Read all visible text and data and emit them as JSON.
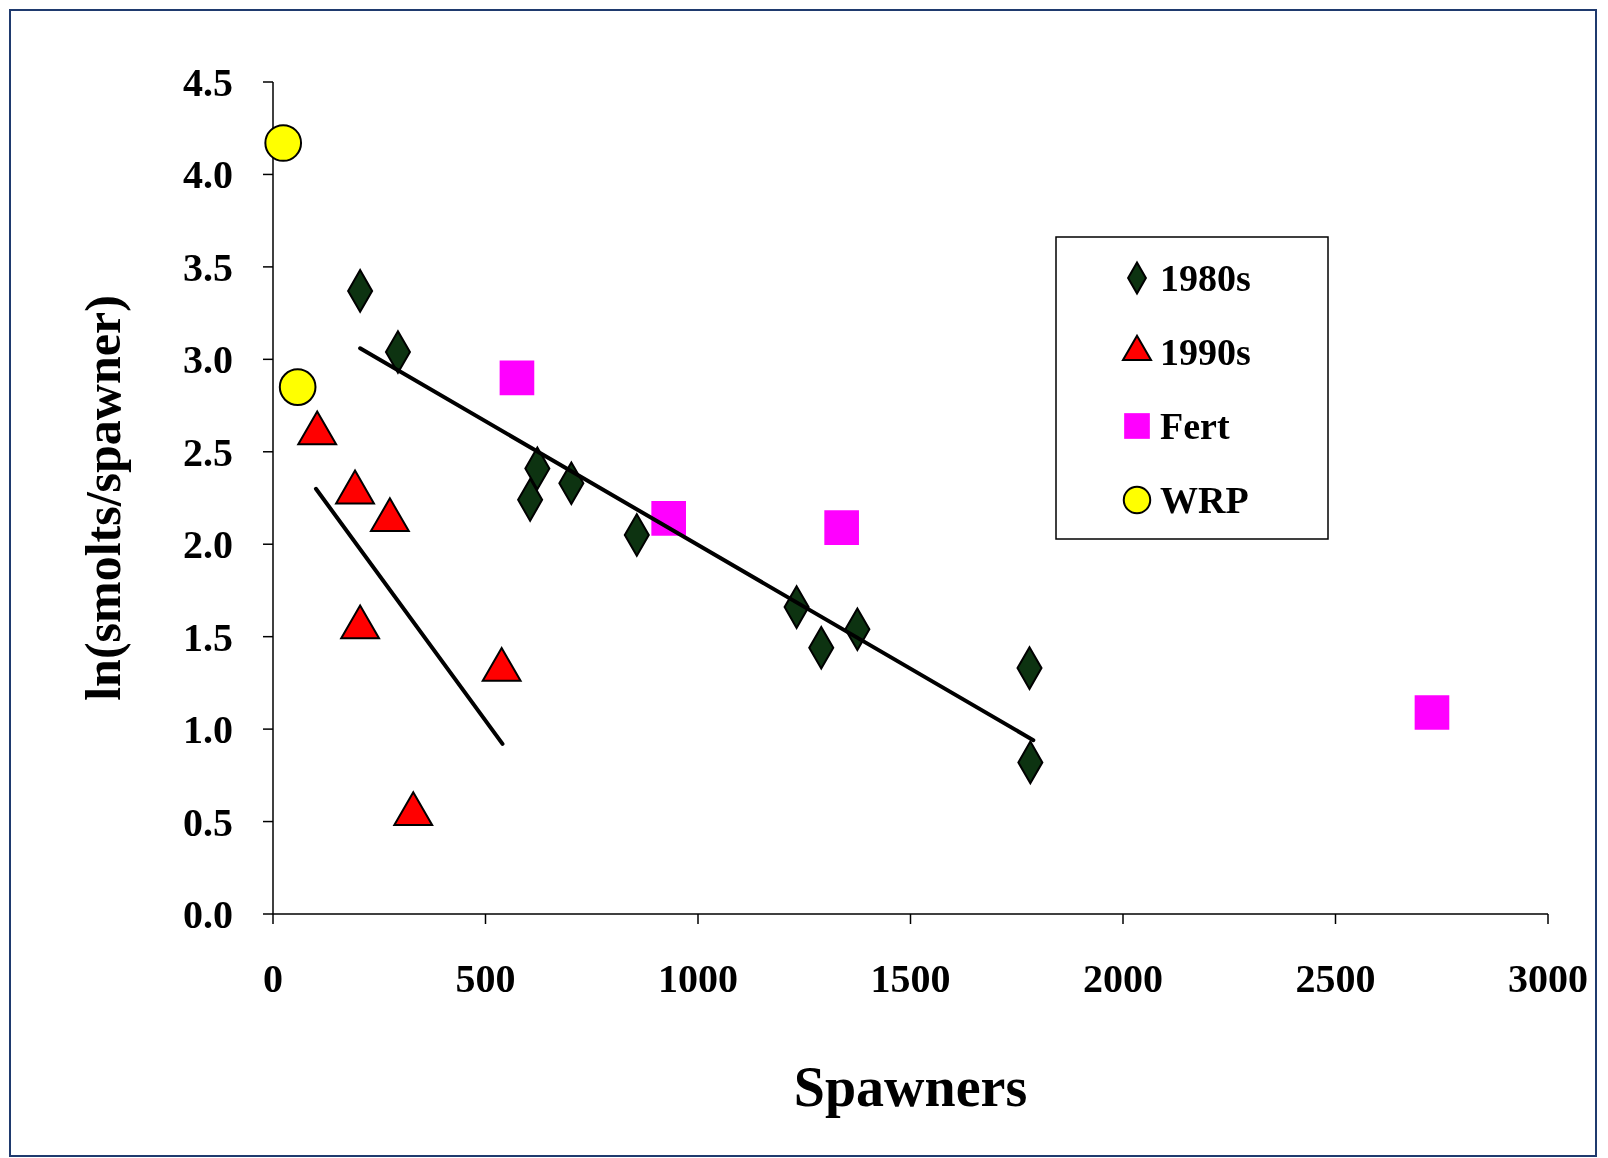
{
  "chart_data": {
    "type": "scatter",
    "xlabel": "Spawners",
    "ylabel": "ln(smolts/spawner)",
    "xlim": [
      0,
      3000
    ],
    "xticks": [
      0,
      500,
      1000,
      1500,
      2000,
      2500,
      3000
    ],
    "ylim": [
      0,
      4.5
    ],
    "yticks": [
      {
        "value": 0,
        "label": "0.0"
      },
      0.5,
      {
        "value": 1,
        "label": "1.0"
      },
      1.5,
      {
        "value": 2,
        "label": "2.0"
      },
      2.5,
      {
        "value": 3,
        "label": "3.0"
      },
      3.5,
      {
        "value": 4,
        "label": "4.0"
      },
      4.5
    ],
    "grid": false,
    "legend": "top right",
    "series": [
      {
        "name": "1980s",
        "color": "#0d3311",
        "marker": "diamond",
        "x": [
          205,
          294,
          622,
          605,
          702,
          856,
          1232,
          1290,
          1375,
          1780,
          1782
        ],
        "values": [
          3.37,
          3.04,
          2.41,
          2.24,
          2.33,
          2.05,
          1.66,
          1.44,
          1.54,
          1.33,
          0.82
        ]
      },
      {
        "name": "1990s",
        "color": "#ff0000",
        "marker": "triangle",
        "x": [
          104,
          193,
          275,
          205,
          538,
          330
        ],
        "values": [
          2.6,
          2.28,
          2.13,
          1.55,
          1.32,
          0.54
        ]
      },
      {
        "name": "Fert",
        "color": "#ff00ff",
        "marker": "square",
        "x": [
          574,
          931,
          1338,
          2727
        ],
        "values": [
          2.9,
          2.14,
          2.09,
          1.09
        ]
      },
      {
        "name": "WRP",
        "color": "#ffff00",
        "marker": "circle",
        "x": [
          24,
          58
        ],
        "values": [
          4.17,
          2.85
        ]
      },
      {
        "type": "line",
        "color": "#000000",
        "line_style": "solid",
        "x": [
          205,
          1789
        ],
        "values": [
          3.06,
          0.94
        ]
      },
      {
        "type": "line",
        "color": "#000000",
        "line_style": "solid",
        "x": [
          101,
          540
        ],
        "values": [
          2.3,
          0.92
        ]
      }
    ]
  }
}
